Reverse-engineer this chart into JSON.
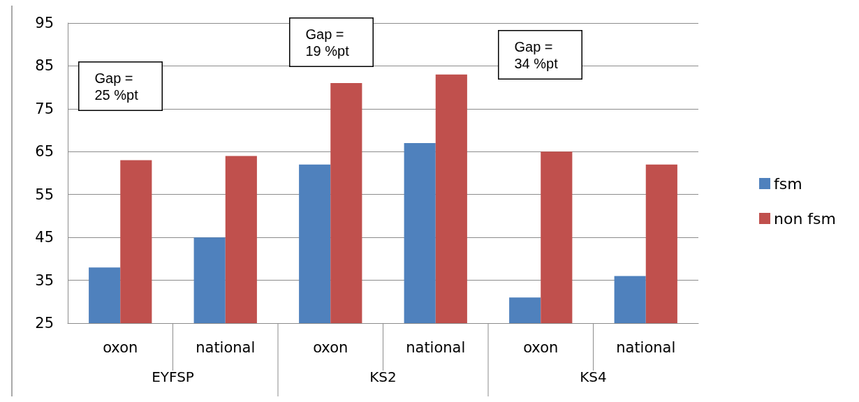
{
  "chart_data": {
    "type": "bar",
    "categories": [
      "oxon",
      "national",
      "oxon",
      "national",
      "oxon",
      "national"
    ],
    "series": [
      {
        "name": "fsm",
        "color": "#4f81bd",
        "values": [
          38,
          45,
          62,
          67,
          31,
          36
        ]
      },
      {
        "name": "non fsm",
        "color": "#c0504d",
        "values": [
          63,
          64,
          81,
          83,
          65,
          62
        ]
      }
    ],
    "ylim": [
      25,
      95
    ],
    "yticks": [
      25,
      35,
      45,
      55,
      65,
      75,
      85,
      95
    ],
    "grid": "y",
    "legend": "right",
    "annotations": [
      "Gap = 25 %pt",
      "Gap = 19 %pt",
      "Gap = 34 %pt",
      "EYFSP",
      "KS2",
      "KS4"
    ]
  }
}
